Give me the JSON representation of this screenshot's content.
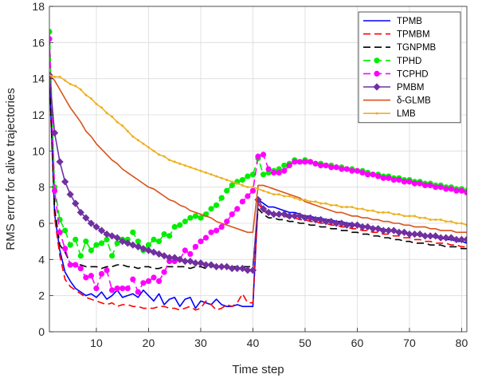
{
  "chart_data": {
    "type": "line",
    "title": "",
    "xlabel": "Time step",
    "ylabel": "RMS error for alive trajectories",
    "xlim": [
      1,
      81
    ],
    "ylim": [
      0,
      18
    ],
    "xticks": [
      10,
      20,
      30,
      40,
      50,
      60,
      70,
      80
    ],
    "yticks": [
      0,
      2,
      4,
      6,
      8,
      10,
      12,
      14,
      16,
      18
    ],
    "grid": true,
    "legend_position": "top-right",
    "x": [
      1,
      2,
      3,
      4,
      5,
      6,
      7,
      8,
      9,
      10,
      11,
      12,
      13,
      14,
      15,
      16,
      17,
      18,
      19,
      20,
      21,
      22,
      23,
      24,
      25,
      26,
      27,
      28,
      29,
      30,
      31,
      32,
      33,
      34,
      35,
      36,
      37,
      38,
      39,
      40,
      41,
      42,
      43,
      44,
      45,
      46,
      47,
      48,
      49,
      50,
      51,
      52,
      53,
      54,
      55,
      56,
      57,
      58,
      59,
      60,
      61,
      62,
      63,
      64,
      65,
      66,
      67,
      68,
      69,
      70,
      71,
      72,
      73,
      74,
      75,
      76,
      77,
      78,
      79,
      80,
      81
    ],
    "series": [
      {
        "name": "TPMB",
        "color": "#0000ff",
        "dash": "",
        "marker": "none",
        "values": [
          14.2,
          6.5,
          4.5,
          3.3,
          2.8,
          2.4,
          2.2,
          2.0,
          2.1,
          1.9,
          2.2,
          1.8,
          2.0,
          2.3,
          1.9,
          2.0,
          2.1,
          1.9,
          2.3,
          2.0,
          1.7,
          2.1,
          1.5,
          1.8,
          1.9,
          1.4,
          1.8,
          1.9,
          1.3,
          1.7,
          1.6,
          1.5,
          1.8,
          1.5,
          1.4,
          1.4,
          1.5,
          1.4,
          1.4,
          1.4,
          7.3,
          7.1,
          6.9,
          6.9,
          6.8,
          6.7,
          6.6,
          6.6,
          6.5,
          6.4,
          6.4,
          6.3,
          6.3,
          6.2,
          6.2,
          6.1,
          6.1,
          6.0,
          6.0,
          5.9,
          5.9,
          5.8,
          5.8,
          5.7,
          5.7,
          5.6,
          5.6,
          5.5,
          5.5,
          5.4,
          5.4,
          5.3,
          5.3,
          5.3,
          5.2,
          5.2,
          5.1,
          5.1,
          5.0,
          5.0,
          4.9
        ]
      },
      {
        "name": "TPMBM",
        "color": "#ff0000",
        "dash": "9,5",
        "marker": "none",
        "values": [
          14.2,
          6.3,
          4.2,
          2.9,
          2.5,
          2.3,
          2.1,
          1.9,
          1.8,
          1.7,
          1.6,
          1.5,
          1.6,
          1.4,
          1.5,
          1.5,
          1.4,
          1.4,
          1.3,
          1.3,
          1.3,
          1.4,
          1.4,
          1.3,
          1.3,
          1.2,
          1.3,
          1.4,
          1.2,
          1.3,
          1.7,
          1.5,
          1.2,
          1.3,
          1.5,
          1.4,
          1.6,
          2.1,
          1.6,
          1.6,
          7.1,
          6.7,
          6.5,
          6.5,
          6.4,
          6.4,
          6.3,
          6.3,
          6.2,
          6.2,
          6.1,
          6.1,
          6.0,
          6.0,
          5.9,
          5.9,
          5.8,
          5.8,
          5.7,
          5.7,
          5.6,
          5.6,
          5.5,
          5.5,
          5.4,
          5.4,
          5.3,
          5.3,
          5.2,
          5.2,
          5.1,
          5.1,
          5.0,
          5.0,
          4.9,
          4.9,
          4.9,
          4.8,
          4.8,
          4.7,
          4.7
        ]
      },
      {
        "name": "TGNPMB",
        "color": "#000000",
        "dash": "9,5",
        "marker": "none",
        "values": [
          14.2,
          6.8,
          4.8,
          4.4,
          3.8,
          3.7,
          3.7,
          3.6,
          3.6,
          3.6,
          3.5,
          3.6,
          3.6,
          3.7,
          3.7,
          3.6,
          3.6,
          3.5,
          3.6,
          3.6,
          3.5,
          3.5,
          3.6,
          3.6,
          3.6,
          3.6,
          3.6,
          3.5,
          3.6,
          3.6,
          3.5,
          3.6,
          3.6,
          3.6,
          3.6,
          3.6,
          3.6,
          3.6,
          3.6,
          3.6,
          6.8,
          6.5,
          6.3,
          6.3,
          6.2,
          6.2,
          6.1,
          6.1,
          6.0,
          6.0,
          5.9,
          5.9,
          5.8,
          5.8,
          5.7,
          5.7,
          5.6,
          5.6,
          5.5,
          5.5,
          5.4,
          5.4,
          5.3,
          5.3,
          5.2,
          5.2,
          5.1,
          5.1,
          5.0,
          5.0,
          4.9,
          4.9,
          4.9,
          4.8,
          4.8,
          4.8,
          4.7,
          4.7,
          4.7,
          4.6,
          4.6
        ]
      },
      {
        "name": "TPHD",
        "color": "#00ee00",
        "dash": "9,5",
        "marker": "circle",
        "values": [
          16.6,
          8.0,
          6.2,
          5.6,
          4.8,
          5.1,
          4.2,
          5.0,
          4.5,
          4.8,
          4.9,
          5.1,
          4.2,
          4.9,
          5.1,
          5.1,
          5.5,
          5.0,
          4.5,
          4.8,
          5.1,
          5.0,
          5.4,
          5.3,
          5.8,
          5.9,
          6.1,
          6.3,
          6.4,
          6.3,
          6.5,
          6.8,
          7.0,
          7.4,
          7.8,
          8.1,
          8.3,
          8.4,
          8.6,
          8.7,
          9.6,
          8.7,
          8.8,
          8.9,
          9.0,
          9.2,
          9.3,
          9.5,
          9.4,
          9.5,
          9.4,
          9.3,
          9.3,
          9.2,
          9.2,
          9.1,
          9.1,
          9.0,
          9.0,
          8.9,
          8.9,
          8.8,
          8.7,
          8.7,
          8.6,
          8.6,
          8.5,
          8.5,
          8.4,
          8.4,
          8.3,
          8.3,
          8.2,
          8.2,
          8.1,
          8.1,
          8.0,
          8.0,
          7.9,
          7.9,
          7.8
        ]
      },
      {
        "name": "TCPHD",
        "color": "#ff00ff",
        "dash": "9,5",
        "marker": "circle",
        "values": [
          16.2,
          7.8,
          5.5,
          4.6,
          3.7,
          3.7,
          3.5,
          3.0,
          3.1,
          2.4,
          3.2,
          3.4,
          2.3,
          2.4,
          2.4,
          2.4,
          2.9,
          2.2,
          2.7,
          2.8,
          3.0,
          2.8,
          3.3,
          3.9,
          3.9,
          4.0,
          4.5,
          4.3,
          4.7,
          5.0,
          5.2,
          5.5,
          5.6,
          5.8,
          6.1,
          6.5,
          6.8,
          7.2,
          7.5,
          7.8,
          9.7,
          9.8,
          9.0,
          8.8,
          8.8,
          8.9,
          9.2,
          9.4,
          9.4,
          9.4,
          9.4,
          9.3,
          9.2,
          9.2,
          9.1,
          9.1,
          9.0,
          9.0,
          8.9,
          8.9,
          8.8,
          8.7,
          8.7,
          8.6,
          8.5,
          8.5,
          8.4,
          8.4,
          8.3,
          8.3,
          8.2,
          8.2,
          8.1,
          8.1,
          8.0,
          8.0,
          7.9,
          7.9,
          7.8,
          7.8,
          7.7
        ]
      },
      {
        "name": "PMBM",
        "color": "#7030a0",
        "dash": "",
        "marker": "diamond",
        "values": [
          14.2,
          11.0,
          9.4,
          8.3,
          7.6,
          7.1,
          6.6,
          6.3,
          6.0,
          5.8,
          5.6,
          5.4,
          5.3,
          5.2,
          5.0,
          4.9,
          4.8,
          4.7,
          4.6,
          4.5,
          4.4,
          4.3,
          4.2,
          4.1,
          4.1,
          4.0,
          3.9,
          3.9,
          3.8,
          3.8,
          3.7,
          3.7,
          3.6,
          3.6,
          3.6,
          3.5,
          3.5,
          3.5,
          3.4,
          3.4,
          7.3,
          6.8,
          6.6,
          6.5,
          6.5,
          6.5,
          6.4,
          6.4,
          6.4,
          6.3,
          6.3,
          6.2,
          6.2,
          6.1,
          6.1,
          6.0,
          6.0,
          5.9,
          5.9,
          5.9,
          5.8,
          5.8,
          5.7,
          5.7,
          5.6,
          5.6,
          5.6,
          5.5,
          5.5,
          5.4,
          5.4,
          5.4,
          5.3,
          5.3,
          5.3,
          5.2,
          5.2,
          5.2,
          5.1,
          5.1,
          5.1
        ]
      },
      {
        "name": "δ-GLMB",
        "color": "#d95319",
        "dash": "",
        "marker": "none",
        "values": [
          14.2,
          13.9,
          13.4,
          12.9,
          12.4,
          12.0,
          11.6,
          11.1,
          10.8,
          10.4,
          10.1,
          9.8,
          9.5,
          9.3,
          9.0,
          8.8,
          8.6,
          8.4,
          8.2,
          8.0,
          7.9,
          7.7,
          7.5,
          7.3,
          7.2,
          7.0,
          6.9,
          6.7,
          6.6,
          6.5,
          6.4,
          6.3,
          6.1,
          6.0,
          5.9,
          5.8,
          5.7,
          5.6,
          5.5,
          5.5,
          8.1,
          8.1,
          8.0,
          7.9,
          7.8,
          7.7,
          7.6,
          7.5,
          7.4,
          7.2,
          7.1,
          7.0,
          6.9,
          6.8,
          6.7,
          6.6,
          6.6,
          6.5,
          6.4,
          6.4,
          6.3,
          6.3,
          6.2,
          6.2,
          6.1,
          6.1,
          6.0,
          6.0,
          5.9,
          5.9,
          5.8,
          5.8,
          5.8,
          5.7,
          5.7,
          5.6,
          5.6,
          5.6,
          5.5,
          5.5,
          5.5
        ]
      },
      {
        "name": "LMB",
        "color": "#edb120",
        "dash": "",
        "marker": "point",
        "values": [
          14.2,
          14.1,
          14.1,
          13.9,
          13.7,
          13.6,
          13.4,
          13.1,
          12.9,
          12.6,
          12.4,
          12.1,
          11.9,
          11.6,
          11.4,
          11.1,
          10.8,
          10.6,
          10.4,
          10.2,
          10.0,
          9.8,
          9.7,
          9.5,
          9.4,
          9.3,
          9.2,
          9.1,
          9.0,
          8.9,
          8.8,
          8.7,
          8.6,
          8.5,
          8.4,
          8.3,
          8.2,
          8.1,
          8.0,
          8.0,
          7.9,
          7.8,
          7.7,
          7.6,
          7.6,
          7.5,
          7.5,
          7.4,
          7.3,
          7.3,
          7.2,
          7.2,
          7.1,
          7.1,
          7.0,
          7.0,
          6.9,
          6.9,
          6.9,
          6.8,
          6.8,
          6.7,
          6.7,
          6.6,
          6.6,
          6.6,
          6.5,
          6.5,
          6.4,
          6.4,
          6.4,
          6.3,
          6.3,
          6.2,
          6.2,
          6.2,
          6.1,
          6.1,
          6.0,
          6.0,
          5.9
        ]
      }
    ]
  }
}
